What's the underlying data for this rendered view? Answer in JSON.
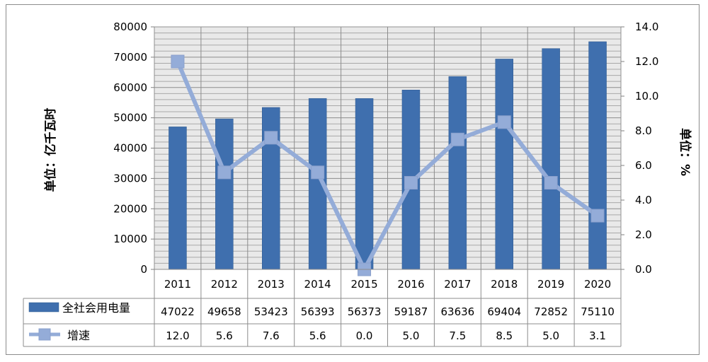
{
  "chart_data": {
    "type": "bar",
    "categories": [
      "2011",
      "2012",
      "2013",
      "2014",
      "2015",
      "2016",
      "2017",
      "2018",
      "2019",
      "2020"
    ],
    "series": [
      {
        "name": "全社会用电量",
        "kind": "bar",
        "axis": "left",
        "color": "#3f6fae",
        "values": [
          47022,
          49658,
          53423,
          56393,
          56373,
          59187,
          63636,
          69404,
          72852,
          75110
        ],
        "labels": [
          "47022",
          "49658",
          "53423",
          "56393",
          "56373",
          "59187",
          "63636",
          "69404",
          "72852",
          "75110"
        ]
      },
      {
        "name": "增速",
        "kind": "line",
        "axis": "right",
        "color": "#94acd8",
        "values": [
          12.0,
          5.6,
          7.6,
          5.6,
          0.0,
          5.0,
          7.5,
          8.5,
          5.0,
          3.1
        ],
        "labels": [
          "12.0",
          "5.6",
          "7.6",
          "5.6",
          "0.0",
          "5.0",
          "7.5",
          "8.5",
          "5.0",
          "3.1"
        ]
      }
    ],
    "ylabel": "单位：亿千瓦时",
    "y2label": "单位：%",
    "ylim": [
      0,
      80000
    ],
    "y2lim": [
      0,
      14
    ],
    "yticks": [
      "0",
      "10000",
      "20000",
      "30000",
      "40000",
      "50000",
      "60000",
      "70000",
      "80000"
    ],
    "y2ticks": [
      "0.0",
      "2.0",
      "4.0",
      "6.0",
      "8.0",
      "10.0",
      "12.0",
      "14.0"
    ],
    "grid": true,
    "legend": "data-table-left"
  }
}
